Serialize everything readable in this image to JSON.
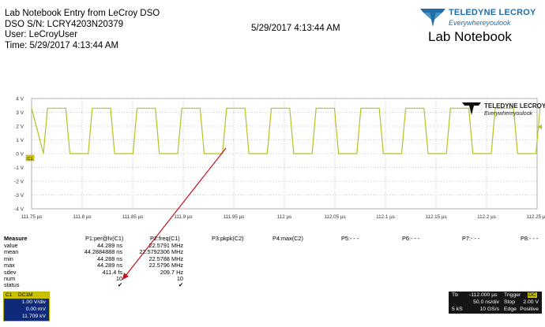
{
  "header": {
    "title": "Lab Notebook Entry from LeCroy DSO",
    "serial": "DSO S/N: LCRY4203N20379",
    "user": "User: LeCroyUser",
    "time": "Time: 5/29/2017 4:13:44 AM",
    "date": "5/29/2017 4:13:44 AM"
  },
  "logo": {
    "brand": "TELEDYNE LECROY",
    "tagline": "Everywhereyoulook",
    "tm": "™",
    "color": "#1f6fa6"
  },
  "notebook_title": "Lab Notebook",
  "scope": {
    "logo_brand": "TELEDYNE LECROY",
    "logo_tagline": "Everywhereyoulook",
    "y_labels": [
      "4 V",
      "3 V",
      "2 V",
      "1 V",
      "0 V",
      "-1 V",
      "-2 V",
      "-3 V",
      "-4 V"
    ],
    "x_labels": [
      "111.75 µs",
      "111.8 µs",
      "111.85 µs",
      "111.9 µs",
      "111.95 µs",
      "112 µs",
      "112.05 µs",
      "112.1 µs",
      "112.15 µs",
      "112.2 µs",
      "112.25 µs"
    ],
    "channel_marker": "C1",
    "trace_color": "#b5c21e",
    "arrow_color": "#c0141c"
  },
  "chart_data": {
    "type": "line",
    "title": "",
    "xlabel": "",
    "ylabel": "",
    "xlim": [
      111.75,
      112.25
    ],
    "ylim": [
      -4,
      4
    ],
    "grid": true,
    "period_us": 0.044289,
    "series": [
      {
        "name": "",
        "high_v": 3.3,
        "low_v": 0.0,
        "first_rise_us": 111.7617,
        "duty": 0.5
      }
    ]
  },
  "measure": {
    "header": [
      "Measure",
      "P1:per@lv(C1)",
      "P2:freq(C1)",
      "P3:pkpk(C2)",
      "P4:max(C2)",
      "P5:- - -",
      "P6:- - -",
      "P7:- - -",
      "P8:- - -"
    ],
    "rows": [
      {
        "label": "value",
        "p1": "44.289 ns",
        "p2": "22.5791 MHz"
      },
      {
        "label": "mean",
        "p1": "44.2884888 ns",
        "p2": "22.5792306 MHz"
      },
      {
        "label": "min",
        "p1": "44.288 ns",
        "p2": "22.5788 MHz"
      },
      {
        "label": "max",
        "p1": "44.289 ns",
        "p2": "22.5796 MHz"
      },
      {
        "label": "sdev",
        "p1": "411.4 fs",
        "p2": "209.7 Hz"
      },
      {
        "label": "num",
        "p1": "10",
        "p2": "10"
      },
      {
        "label": "status",
        "p1": "✔",
        "p2": "✔"
      }
    ]
  },
  "c1_panel": {
    "label": "C1",
    "tag": "DC1M",
    "vdiv": "1.00 V/div",
    "offset": "0.00 mV",
    "bw": "11.709 kV"
  },
  "timebase": {
    "tb_label": "Tb",
    "tb_value": "-112.000 µs",
    "trigger_label": "Trigger",
    "trigger_mode": "DC",
    "tdiv": "50.0 ns/div",
    "stop": "Stop",
    "level": "2.00 V",
    "samples": "5 kS",
    "rate": "10 GS/s",
    "edge": "Edge",
    "polarity": "Positive"
  }
}
